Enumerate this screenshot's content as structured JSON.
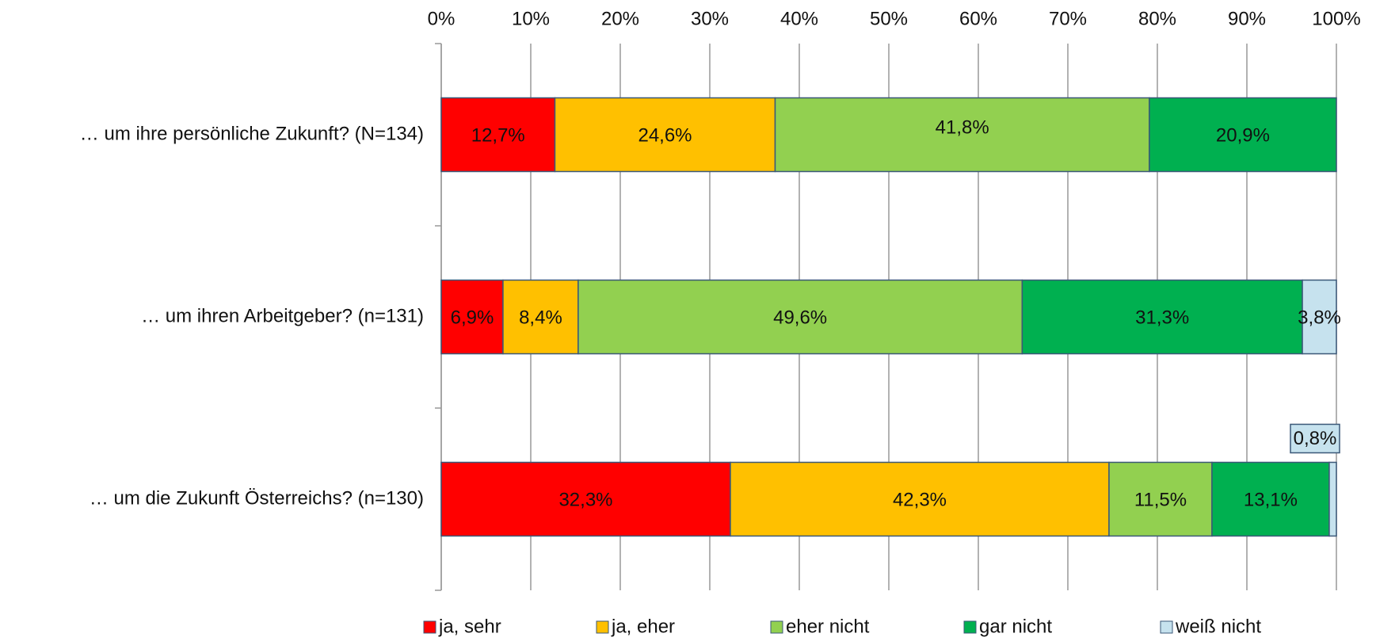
{
  "chart_data": {
    "type": "stacked-barh",
    "categories": [
      "… um ihre persönliche Zukunft? (N=134)",
      "… um ihren Arbeitgeber? (n=131)",
      "… um die Zukunft Österreichs? (n=130)"
    ],
    "series": [
      {
        "name": "ja, sehr",
        "color": "#ff0000",
        "values": [
          12.7,
          6.9,
          32.3
        ],
        "value_labels": [
          "12,7%",
          "6,9%",
          "32,3%"
        ]
      },
      {
        "name": "ja, eher",
        "color": "#ffc000",
        "values": [
          24.6,
          8.4,
          42.3
        ],
        "value_labels": [
          "24,6%",
          "8,4%",
          "42,3%"
        ]
      },
      {
        "name": "eher nicht",
        "color": "#92d050",
        "values": [
          41.8,
          49.6,
          11.5
        ],
        "value_labels": [
          "41,8%",
          "49,6%",
          "11,5%"
        ]
      },
      {
        "name": "gar nicht",
        "color": "#00b050",
        "values": [
          20.9,
          31.3,
          13.1
        ],
        "value_labels": [
          "20,9%",
          "31,3%",
          "13,1%"
        ]
      },
      {
        "name": "weiß nicht",
        "color": "#c6e2ee",
        "values": [
          null,
          3.8,
          0.8
        ],
        "value_labels": [
          null,
          "3,8%",
          "0,8%"
        ]
      }
    ],
    "xlim": [
      0,
      100
    ],
    "xticks": [
      {
        "value": 0,
        "label": "0%"
      },
      {
        "value": 10,
        "label": "10%"
      },
      {
        "value": 20,
        "label": "20%"
      },
      {
        "value": 30,
        "label": "30%"
      },
      {
        "value": 40,
        "label": "40%"
      },
      {
        "value": 50,
        "label": "50%"
      },
      {
        "value": 60,
        "label": "60%"
      },
      {
        "value": 70,
        "label": "70%"
      },
      {
        "value": 80,
        "label": "80%"
      },
      {
        "value": 90,
        "label": "90%"
      },
      {
        "value": 100,
        "label": "100%"
      }
    ],
    "grid": true,
    "legend": "bottom"
  }
}
